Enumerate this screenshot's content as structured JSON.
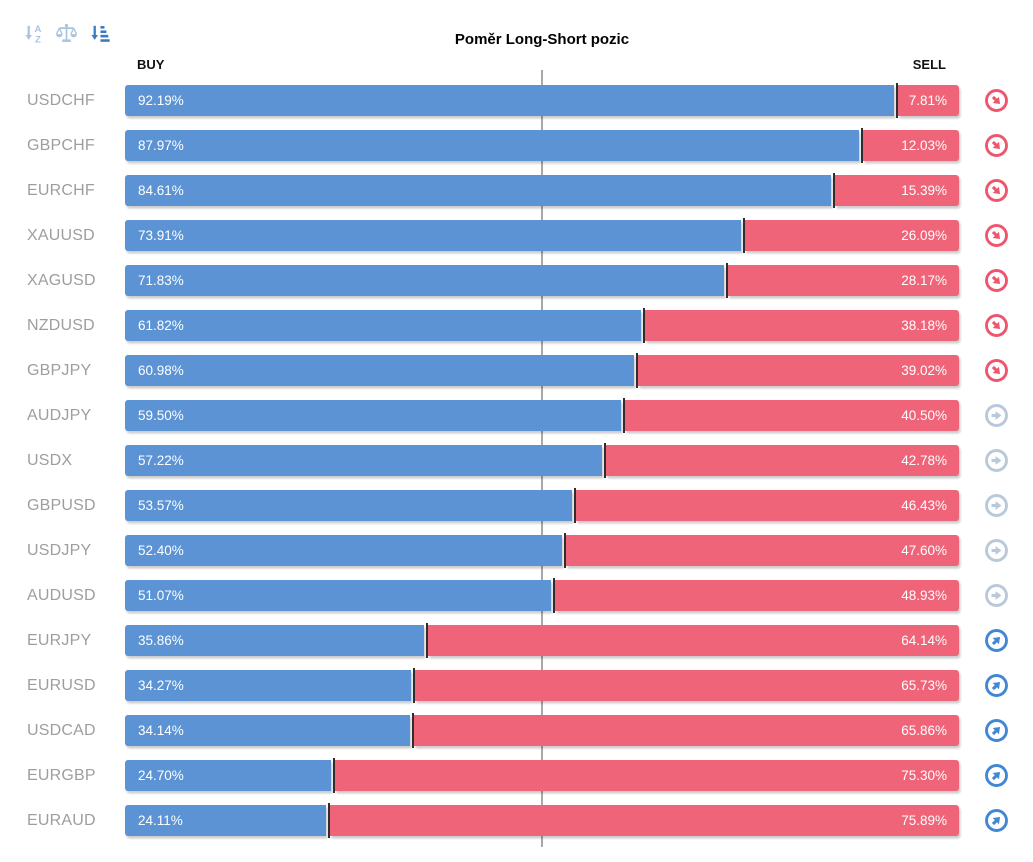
{
  "title": "Poměr Long-Short pozic",
  "column_headers": {
    "buy": "BUY",
    "sell": "SELL"
  },
  "toolbar": {
    "icons": [
      {
        "name": "sort-alpha-icon",
        "active": false,
        "glyph_top": "A",
        "glyph_bottom": "Z"
      },
      {
        "name": "balance-scale-icon",
        "active": false
      },
      {
        "name": "sort-amount-desc-icon",
        "active": true
      }
    ]
  },
  "colors": {
    "buy": "#5b93d4",
    "sell": "#ef6478",
    "trend_down": "#ee566e",
    "trend_neutral": "#b9c9da",
    "trend_up": "#4187d6",
    "pair_label": "#9e9e9e",
    "divider": "#2e2e2e",
    "center_line": "#a8a8a8",
    "sort_inactive": "#a9c4e1",
    "sort_active": "#3c7abf"
  },
  "chart_data": {
    "type": "bar",
    "orientation": "horizontal-stacked",
    "title": "Poměr Long-Short pozic",
    "xlim": [
      0,
      100
    ],
    "center_reference_pct": 50,
    "legend_position": "top (BUY left, SELL right)",
    "categories": [
      "USDCHF",
      "GBPCHF",
      "EURCHF",
      "XAUUSD",
      "XAGUSD",
      "NZDUSD",
      "GBPJPY",
      "AUDJPY",
      "USDX",
      "GBPUSD",
      "USDJPY",
      "AUDUSD",
      "EURJPY",
      "EURUSD",
      "USDCAD",
      "EURGBP",
      "EURAUD"
    ],
    "series": [
      {
        "name": "BUY",
        "values": [
          92.19,
          87.97,
          84.61,
          73.91,
          71.83,
          61.82,
          60.98,
          59.5,
          57.22,
          53.57,
          52.4,
          51.07,
          35.86,
          34.27,
          34.14,
          24.7,
          24.11
        ]
      },
      {
        "name": "SELL",
        "values": [
          7.81,
          12.03,
          15.39,
          26.09,
          28.17,
          38.18,
          39.02,
          40.5,
          42.78,
          46.43,
          47.6,
          48.93,
          64.14,
          65.73,
          65.86,
          75.3,
          75.89
        ]
      }
    ],
    "trend_markers": [
      "down",
      "down",
      "down",
      "down",
      "down",
      "down",
      "down",
      "neutral",
      "neutral",
      "neutral",
      "neutral",
      "neutral",
      "up",
      "up",
      "up",
      "up",
      "up"
    ]
  },
  "rows": [
    {
      "pair": "USDCHF",
      "buy_label": "92.19%",
      "sell_label": "7.81%",
      "buy_pct": 92.19,
      "sell_pct": 7.81,
      "trend": "down"
    },
    {
      "pair": "GBPCHF",
      "buy_label": "87.97%",
      "sell_label": "12.03%",
      "buy_pct": 87.97,
      "sell_pct": 12.03,
      "trend": "down"
    },
    {
      "pair": "EURCHF",
      "buy_label": "84.61%",
      "sell_label": "15.39%",
      "buy_pct": 84.61,
      "sell_pct": 15.39,
      "trend": "down"
    },
    {
      "pair": "XAUUSD",
      "buy_label": "73.91%",
      "sell_label": "26.09%",
      "buy_pct": 73.91,
      "sell_pct": 26.09,
      "trend": "down"
    },
    {
      "pair": "XAGUSD",
      "buy_label": "71.83%",
      "sell_label": "28.17%",
      "buy_pct": 71.83,
      "sell_pct": 28.17,
      "trend": "down"
    },
    {
      "pair": "NZDUSD",
      "buy_label": "61.82%",
      "sell_label": "38.18%",
      "buy_pct": 61.82,
      "sell_pct": 38.18,
      "trend": "down"
    },
    {
      "pair": "GBPJPY",
      "buy_label": "60.98%",
      "sell_label": "39.02%",
      "buy_pct": 60.98,
      "sell_pct": 39.02,
      "trend": "down"
    },
    {
      "pair": "AUDJPY",
      "buy_label": "59.50%",
      "sell_label": "40.50%",
      "buy_pct": 59.5,
      "sell_pct": 40.5,
      "trend": "neutral"
    },
    {
      "pair": "USDX",
      "buy_label": "57.22%",
      "sell_label": "42.78%",
      "buy_pct": 57.22,
      "sell_pct": 42.78,
      "trend": "neutral"
    },
    {
      "pair": "GBPUSD",
      "buy_label": "53.57%",
      "sell_label": "46.43%",
      "buy_pct": 53.57,
      "sell_pct": 46.43,
      "trend": "neutral"
    },
    {
      "pair": "USDJPY",
      "buy_label": "52.40%",
      "sell_label": "47.60%",
      "buy_pct": 52.4,
      "sell_pct": 47.6,
      "trend": "neutral"
    },
    {
      "pair": "AUDUSD",
      "buy_label": "51.07%",
      "sell_label": "48.93%",
      "buy_pct": 51.07,
      "sell_pct": 48.93,
      "trend": "neutral"
    },
    {
      "pair": "EURJPY",
      "buy_label": "35.86%",
      "sell_label": "64.14%",
      "buy_pct": 35.86,
      "sell_pct": 64.14,
      "trend": "up"
    },
    {
      "pair": "EURUSD",
      "buy_label": "34.27%",
      "sell_label": "65.73%",
      "buy_pct": 34.27,
      "sell_pct": 65.73,
      "trend": "up"
    },
    {
      "pair": "USDCAD",
      "buy_label": "34.14%",
      "sell_label": "65.86%",
      "buy_pct": 34.14,
      "sell_pct": 65.86,
      "trend": "up"
    },
    {
      "pair": "EURGBP",
      "buy_label": "24.70%",
      "sell_label": "75.30%",
      "buy_pct": 24.7,
      "sell_pct": 75.3,
      "trend": "up"
    },
    {
      "pair": "EURAUD",
      "buy_label": "24.11%",
      "sell_label": "75.89%",
      "buy_pct": 24.11,
      "sell_pct": 75.89,
      "trend": "up"
    }
  ]
}
